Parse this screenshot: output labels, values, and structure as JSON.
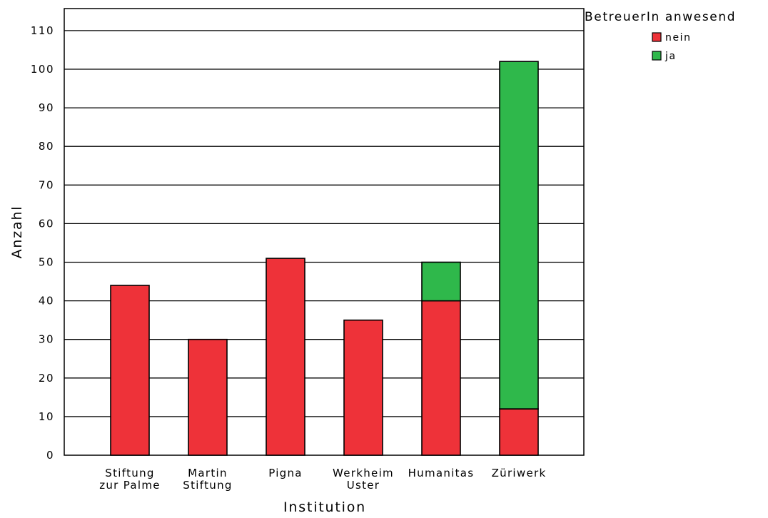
{
  "chart_data": {
    "type": "bar",
    "stacked": true,
    "categories": [
      [
        "Stiftung",
        "zur Palme"
      ],
      [
        "Martin",
        "Stiftung"
      ],
      [
        "Pigna"
      ],
      [
        "Werkheim",
        "Uster"
      ],
      [
        "Humanitas"
      ],
      [
        "Züriwerk"
      ]
    ],
    "series": [
      {
        "name": "nein",
        "color": "#ee3239",
        "values": [
          44,
          30,
          51,
          35,
          40,
          12
        ]
      },
      {
        "name": "ja",
        "color": "#2fb84b",
        "values": [
          0,
          0,
          0,
          0,
          10,
          90
        ]
      }
    ],
    "xlabel": "Institution",
    "ylabel": "Anzahl",
    "ylim": [
      0,
      110
    ],
    "yticks": [
      0,
      10,
      20,
      30,
      40,
      50,
      60,
      70,
      80,
      90,
      100,
      110
    ],
    "grid": true,
    "legend": {
      "title": "BetreuerIn anwesend",
      "position": "top-right"
    }
  }
}
